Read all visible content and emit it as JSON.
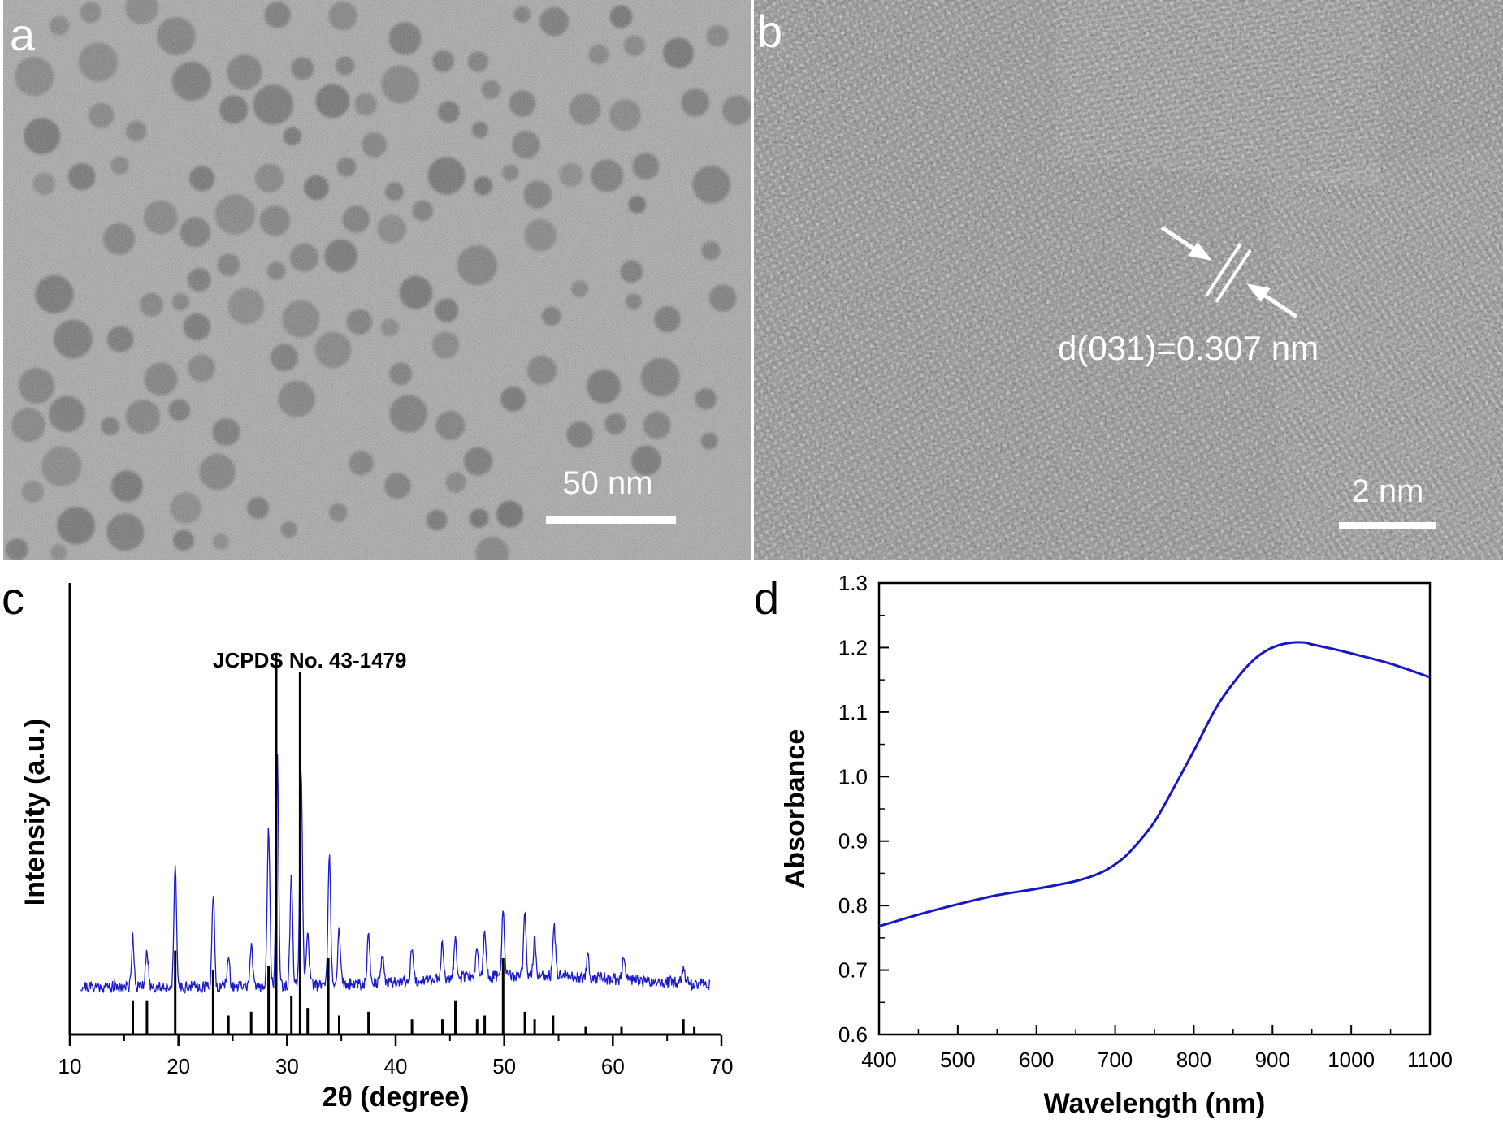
{
  "panels": {
    "a": {
      "label": "a",
      "scale_bar_text": "50 nm"
    },
    "b": {
      "label": "b",
      "scale_bar_text": "2 nm",
      "annotation": "d(031)=0.307 nm"
    },
    "c": {
      "label": "c",
      "reference_text": "JCPDS No. 43-1479"
    },
    "d": {
      "label": "d"
    }
  },
  "colors": {
    "measured_pattern": "#1c1ccc",
    "reference_lines": "#000000",
    "absorbance_curve": "#1818c0"
  },
  "chart_data": [
    {
      "type": "line",
      "panel": "c",
      "xlabel": "2θ (degree)",
      "ylabel": "Intensity (a.u.)",
      "xlim": [
        10,
        70
      ],
      "xticks": [
        10,
        20,
        30,
        40,
        50,
        60,
        70
      ],
      "yticks_shown": false,
      "series": [
        {
          "kind": "measured",
          "peaks": [
            {
              "x": 15.8,
              "height": 0.16
            },
            {
              "x": 17.1,
              "height": 0.12
            },
            {
              "x": 19.7,
              "height": 0.38
            },
            {
              "x": 23.2,
              "height": 0.3
            },
            {
              "x": 24.6,
              "height": 0.09
            },
            {
              "x": 26.7,
              "height": 0.13
            },
            {
              "x": 28.3,
              "height": 0.51
            },
            {
              "x": 29.1,
              "height": 0.75
            },
            {
              "x": 30.4,
              "height": 0.35
            },
            {
              "x": 31.3,
              "height": 0.69
            },
            {
              "x": 31.9,
              "height": 0.19
            },
            {
              "x": 33.9,
              "height": 0.42
            },
            {
              "x": 34.8,
              "height": 0.18
            },
            {
              "x": 37.5,
              "height": 0.16
            },
            {
              "x": 38.8,
              "height": 0.09
            },
            {
              "x": 41.5,
              "height": 0.1
            },
            {
              "x": 44.3,
              "height": 0.12
            },
            {
              "x": 45.5,
              "height": 0.14
            },
            {
              "x": 47.5,
              "height": 0.1
            },
            {
              "x": 48.2,
              "height": 0.14
            },
            {
              "x": 49.9,
              "height": 0.21
            },
            {
              "x": 51.9,
              "height": 0.19
            },
            {
              "x": 52.8,
              "height": 0.12
            },
            {
              "x": 54.6,
              "height": 0.16
            },
            {
              "x": 57.7,
              "height": 0.07
            },
            {
              "x": 61.0,
              "height": 0.07
            },
            {
              "x": 66.5,
              "height": 0.05
            }
          ]
        },
        {
          "kind": "reference",
          "sticks": [
            {
              "x": 15.8,
              "height": 0.09
            },
            {
              "x": 17.1,
              "height": 0.09
            },
            {
              "x": 19.7,
              "height": 0.22
            },
            {
              "x": 23.2,
              "height": 0.17
            },
            {
              "x": 24.6,
              "height": 0.05
            },
            {
              "x": 26.7,
              "height": 0.06
            },
            {
              "x": 28.3,
              "height": 0.18
            },
            {
              "x": 29.0,
              "height": 1.0
            },
            {
              "x": 30.4,
              "height": 0.1
            },
            {
              "x": 31.2,
              "height": 0.95
            },
            {
              "x": 31.9,
              "height": 0.07
            },
            {
              "x": 33.8,
              "height": 0.2
            },
            {
              "x": 34.8,
              "height": 0.05
            },
            {
              "x": 37.5,
              "height": 0.06
            },
            {
              "x": 41.5,
              "height": 0.04
            },
            {
              "x": 44.3,
              "height": 0.04
            },
            {
              "x": 45.5,
              "height": 0.09
            },
            {
              "x": 47.5,
              "height": 0.04
            },
            {
              "x": 48.2,
              "height": 0.05
            },
            {
              "x": 49.9,
              "height": 0.2
            },
            {
              "x": 51.9,
              "height": 0.06
            },
            {
              "x": 52.8,
              "height": 0.04
            },
            {
              "x": 54.5,
              "height": 0.05
            },
            {
              "x": 57.5,
              "height": 0.02
            },
            {
              "x": 60.8,
              "height": 0.02
            },
            {
              "x": 66.5,
              "height": 0.04
            },
            {
              "x": 67.5,
              "height": 0.02
            }
          ]
        }
      ]
    },
    {
      "type": "line",
      "panel": "d",
      "xlabel": "Wavelength (nm)",
      "ylabel": "Absorbance",
      "xlim": [
        400,
        1100
      ],
      "ylim": [
        0.6,
        1.3
      ],
      "xticks": [
        400,
        500,
        600,
        700,
        800,
        900,
        1000,
        1100
      ],
      "yticks": [
        0.6,
        0.7,
        0.8,
        0.9,
        1.0,
        1.1,
        1.2,
        1.3
      ],
      "series": [
        {
          "x": [
            400,
            450,
            500,
            550,
            600,
            650,
            680,
            700,
            720,
            750,
            780,
            800,
            830,
            860,
            880,
            900,
            920,
            940,
            950,
            980,
            1000,
            1050,
            1100
          ],
          "y": [
            0.768,
            0.786,
            0.802,
            0.816,
            0.826,
            0.838,
            0.85,
            0.864,
            0.885,
            0.93,
            0.995,
            1.04,
            1.11,
            1.16,
            1.185,
            1.2,
            1.207,
            1.208,
            1.205,
            1.197,
            1.191,
            1.175,
            1.154
          ]
        }
      ]
    }
  ]
}
